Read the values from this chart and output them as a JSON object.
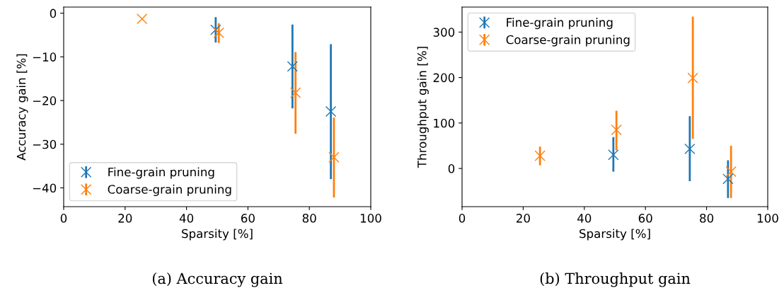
{
  "chart_data": [
    {
      "type": "scatter",
      "xlabel": "Sparsity [%]",
      "ylabel": "Accuracy gain [%]",
      "annotations": [
        "(a) Accuracy gain"
      ],
      "xlim": [
        0,
        100
      ],
      "xticks": [
        0,
        20,
        40,
        60,
        80,
        100
      ],
      "ylim": [
        -44.3,
        1.4
      ],
      "yticks": [
        {
          "value": 0,
          "label": "0"
        },
        {
          "value": -10,
          "label": "−10"
        },
        {
          "value": -20,
          "label": "−20"
        },
        {
          "value": -30,
          "label": "−30"
        },
        {
          "value": -40,
          "label": "−40"
        }
      ],
      "marker": "cross",
      "legend": "bottom left",
      "grid": false,
      "series": [
        {
          "name": "Fine-grain pruning",
          "color": "#1f77b4",
          "x": [
            49.5,
            74.5,
            87
          ],
          "values": [
            -3.8,
            -12.2,
            -22.5
          ],
          "errors": [
            [
              -6.7,
              -0.9
            ],
            [
              -21.8,
              -2.6
            ],
            [
              -38.0,
              -7.1
            ]
          ]
        },
        {
          "name": "Coarse-grain pruning",
          "color": "#ff7f0e",
          "x": [
            25.5,
            50.5,
            75.5,
            88
          ],
          "values": [
            -1.3,
            -4.5,
            -18.2,
            -33.0
          ],
          "errors": [
            null,
            [
              -6.8,
              -2.3
            ],
            [
              -27.6,
              -8.9
            ],
            [
              -42.2,
              -23.9
            ]
          ]
        }
      ]
    },
    {
      "type": "scatter",
      "xlabel": "Sparsity [%]",
      "ylabel": "Throughput gain [%]",
      "annotations": [
        "(b) Throughput gain"
      ],
      "xlim": [
        0,
        100
      ],
      "xticks": [
        0,
        20,
        40,
        60,
        80,
        100
      ],
      "ylim": [
        -84,
        355
      ],
      "yticks": [
        0,
        100,
        200,
        300
      ],
      "marker": "cross",
      "legend": "top left",
      "grid": false,
      "series": [
        {
          "name": "Fine-grain pruning",
          "color": "#1f77b4",
          "x": [
            49.5,
            74.5,
            87
          ],
          "values": [
            30,
            43,
            -23
          ],
          "errors": [
            [
              -7,
              69
            ],
            [
              -28,
              115
            ],
            [
              -65,
              18
            ]
          ]
        },
        {
          "name": "Coarse-grain pruning",
          "color": "#ff7f0e",
          "x": [
            25.5,
            50.5,
            75.5,
            88
          ],
          "values": [
            28,
            85,
            199,
            -7
          ],
          "errors": [
            [
              7,
              48
            ],
            [
              40,
              127
            ],
            [
              65,
              334
            ],
            [
              -65,
              50
            ]
          ]
        }
      ]
    }
  ]
}
